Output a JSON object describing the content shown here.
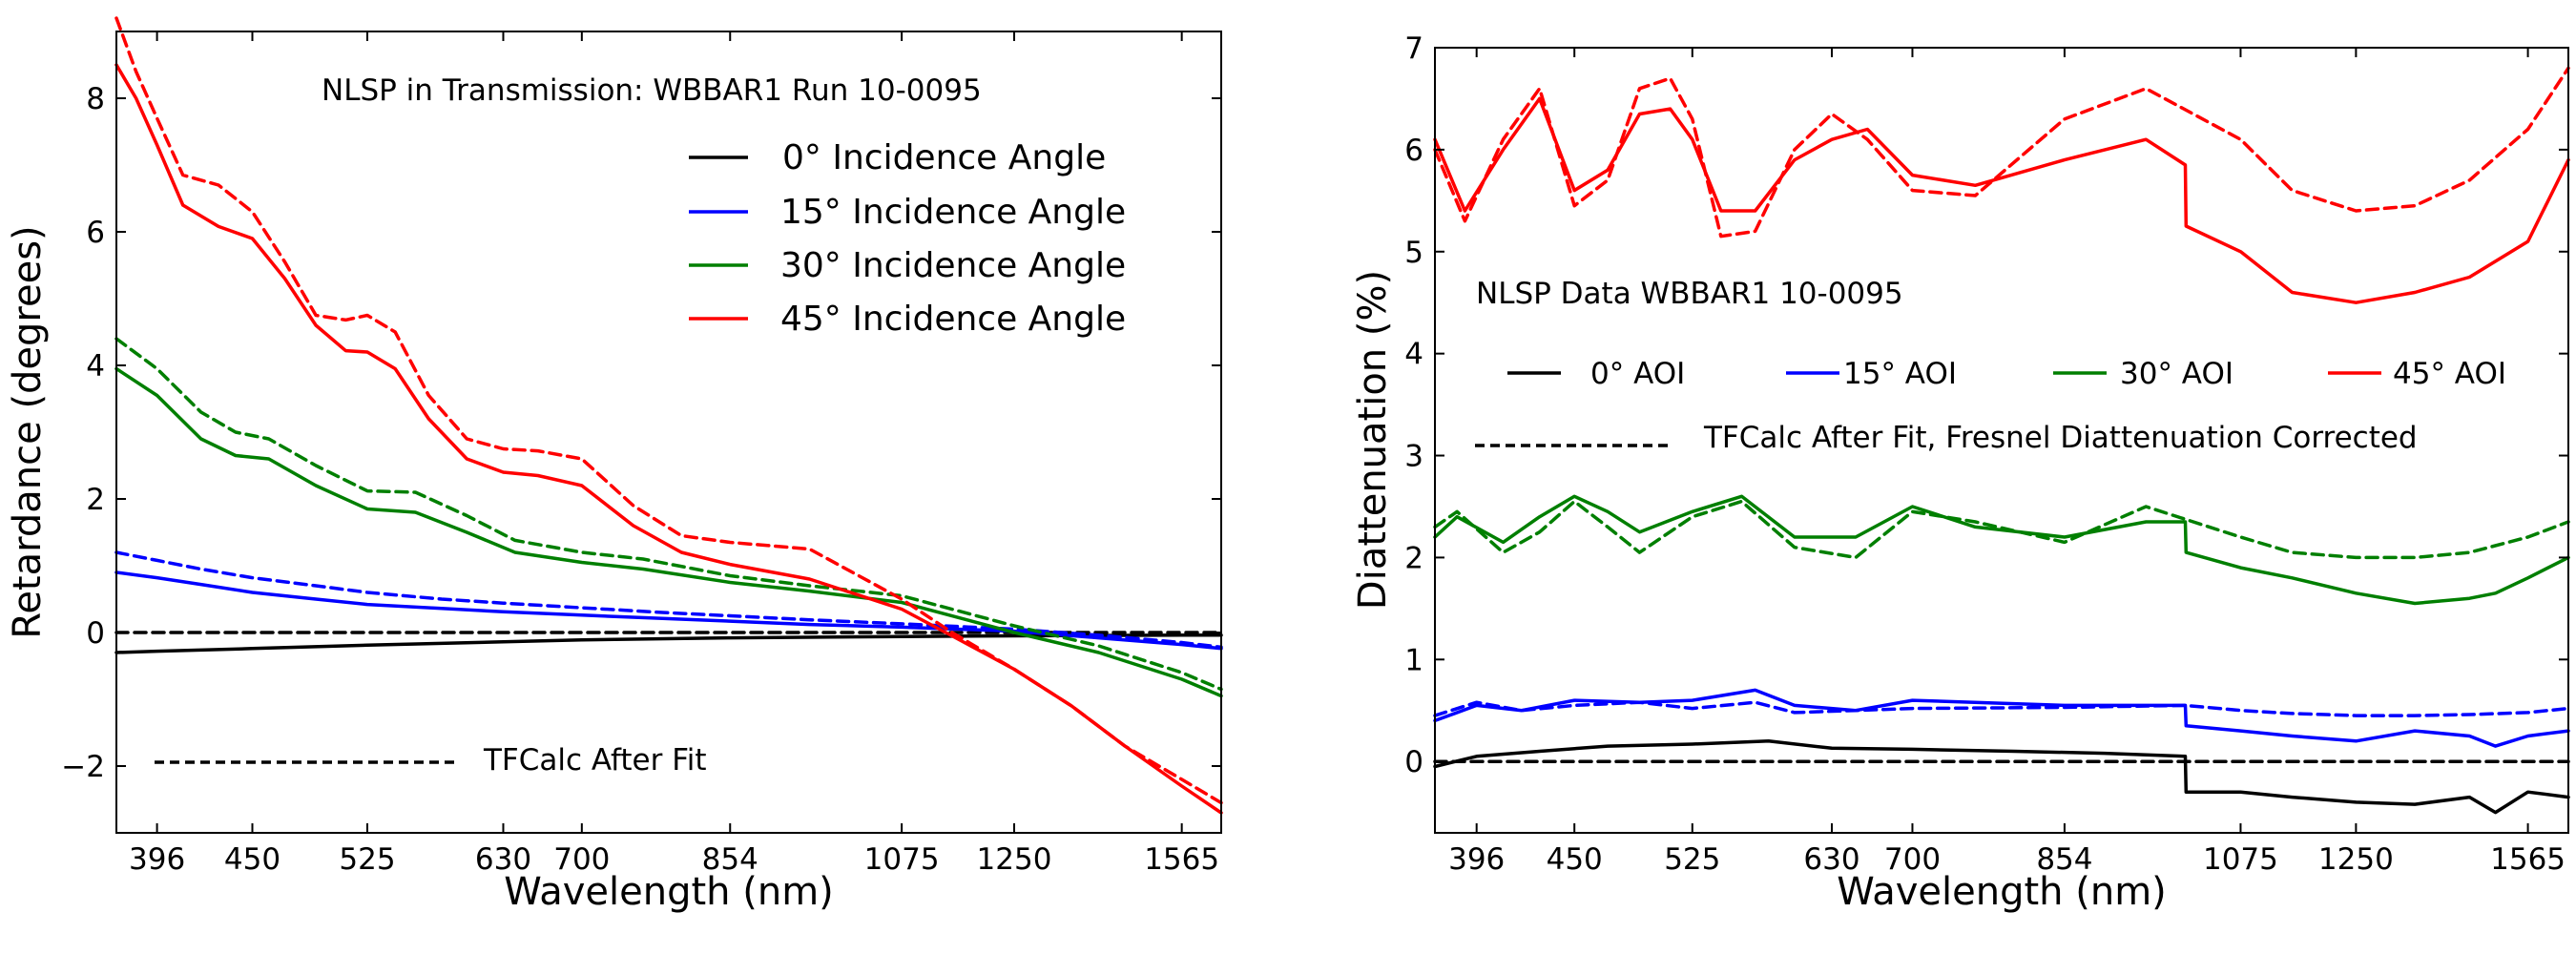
{
  "chart_data": [
    {
      "type": "line",
      "title": "NLSP in Transmission:  WBBAR1  Run 10-0095",
      "xlabel": "Wavelength (nm)",
      "ylabel": "Retardance (degrees)",
      "x_scale": "log",
      "xlim": [
        375,
        1650
      ],
      "ylim": [
        -3,
        9
      ],
      "xticks": [
        396,
        450,
        525,
        630,
        700,
        854,
        1075,
        1250,
        1565
      ],
      "yticks": [
        -2,
        0,
        2,
        4,
        6,
        8
      ],
      "ytick_labels": [
        "−2",
        "0",
        "2",
        "4",
        "6",
        "8"
      ],
      "legend": [
        "0° Incidence Angle",
        "15° Incidence Angle",
        "30° Incidence Angle",
        "45° Incidence Angle"
      ],
      "legend_position": "upper-right",
      "dashed_note": "TFCalc After Fit",
      "colors": {
        "0": "#000000",
        "15": "#0000ff",
        "30": "#007f00",
        "45": "#ff0000"
      },
      "series": [
        {
          "name": "0° measured",
          "angle": "0",
          "style": "solid",
          "x": [
            375,
            396,
            450,
            525,
            630,
            700,
            854,
            1075,
            1250,
            1565,
            1650
          ],
          "y": [
            -0.3,
            -0.28,
            -0.24,
            -0.19,
            -0.14,
            -0.11,
            -0.08,
            -0.06,
            -0.05,
            -0.04,
            -0.04
          ]
        },
        {
          "name": "0° TFCalc",
          "angle": "0",
          "style": "dashed",
          "x": [
            375,
            1650
          ],
          "y": [
            0.0,
            0.0
          ]
        },
        {
          "name": "15° measured",
          "angle": "15",
          "style": "solid",
          "x": [
            375,
            396,
            420,
            450,
            490,
            525,
            580,
            630,
            700,
            780,
            854,
            950,
            1075,
            1250,
            1400,
            1565,
            1650
          ],
          "y": [
            0.9,
            0.82,
            0.72,
            0.6,
            0.5,
            0.42,
            0.36,
            0.31,
            0.26,
            0.21,
            0.17,
            0.12,
            0.08,
            0.02,
            -0.08,
            -0.18,
            -0.24
          ]
        },
        {
          "name": "15° TFCalc",
          "angle": "15",
          "style": "dashed",
          "x": [
            375,
            396,
            420,
            450,
            490,
            525,
            580,
            630,
            700,
            780,
            854,
            950,
            1075,
            1250,
            1400,
            1565,
            1650
          ],
          "y": [
            1.2,
            1.08,
            0.95,
            0.82,
            0.7,
            0.6,
            0.5,
            0.44,
            0.37,
            0.3,
            0.25,
            0.19,
            0.13,
            0.05,
            -0.04,
            -0.15,
            -0.22
          ]
        },
        {
          "name": "30° measured",
          "angle": "30",
          "style": "solid",
          "x": [
            375,
            396,
            420,
            440,
            460,
            490,
            525,
            560,
            600,
            640,
            700,
            760,
            854,
            950,
            1075,
            1250,
            1400,
            1565,
            1650
          ],
          "y": [
            3.95,
            3.55,
            2.9,
            2.65,
            2.6,
            2.2,
            1.85,
            1.8,
            1.5,
            1.2,
            1.05,
            0.95,
            0.75,
            0.62,
            0.45,
            0.0,
            -0.3,
            -0.7,
            -0.95
          ]
        },
        {
          "name": "30° TFCalc",
          "angle": "30",
          "style": "dashed",
          "x": [
            375,
            396,
            420,
            440,
            460,
            490,
            525,
            560,
            600,
            640,
            700,
            760,
            854,
            950,
            1075,
            1250,
            1400,
            1565,
            1650
          ],
          "y": [
            4.4,
            3.95,
            3.3,
            3.0,
            2.9,
            2.5,
            2.12,
            2.1,
            1.75,
            1.38,
            1.2,
            1.1,
            0.85,
            0.7,
            0.55,
            0.1,
            -0.2,
            -0.6,
            -0.85
          ]
        },
        {
          "name": "45° measured",
          "angle": "45",
          "style": "solid",
          "x": [
            375,
            385,
            396,
            410,
            430,
            450,
            470,
            490,
            510,
            525,
            545,
            570,
            600,
            630,
            660,
            700,
            750,
            800,
            854,
            950,
            1075,
            1150,
            1250,
            1350,
            1450,
            1565,
            1650
          ],
          "y": [
            8.5,
            8.0,
            7.3,
            6.4,
            6.08,
            5.9,
            5.3,
            4.6,
            4.22,
            4.2,
            3.95,
            3.2,
            2.6,
            2.4,
            2.35,
            2.2,
            1.6,
            1.2,
            1.02,
            0.8,
            0.35,
            -0.05,
            -0.55,
            -1.1,
            -1.7,
            -2.3,
            -2.7
          ]
        },
        {
          "name": "45° TFCalc",
          "angle": "45",
          "style": "dashed",
          "x": [
            375,
            385,
            396,
            410,
            430,
            450,
            470,
            490,
            510,
            525,
            545,
            570,
            600,
            630,
            660,
            700,
            750,
            800,
            854,
            950,
            1075,
            1150,
            1250,
            1350,
            1450,
            1565,
            1650
          ],
          "y": [
            9.2,
            8.4,
            7.7,
            6.85,
            6.7,
            6.3,
            5.55,
            4.75,
            4.68,
            4.75,
            4.5,
            3.55,
            2.9,
            2.75,
            2.72,
            2.6,
            1.9,
            1.45,
            1.35,
            1.25,
            0.5,
            0.0,
            -0.55,
            -1.1,
            -1.7,
            -2.2,
            -2.55
          ]
        }
      ]
    },
    {
      "type": "line",
      "title": "NLSP Data WBBAR1  10-0095",
      "xlabel": "Wavelength (nm)",
      "ylabel": "Diattenuation (%)",
      "x_scale": "log",
      "xlim": [
        375,
        1650
      ],
      "ylim": [
        -0.7,
        7
      ],
      "xticks": [
        396,
        450,
        525,
        630,
        700,
        854,
        1075,
        1250,
        1565
      ],
      "yticks": [
        0,
        1,
        2,
        3,
        4,
        5,
        6,
        7
      ],
      "legend": [
        "0° AOI",
        "15° AOI",
        "30° AOI",
        "45° AOI"
      ],
      "legend_position": "center-left",
      "dashed_note": "TFCalc After Fit, Fresnel Diattenuation Corrected",
      "colors": {
        "0": "#000000",
        "15": "#0000ff",
        "30": "#007f00",
        "45": "#ff0000"
      },
      "series": [
        {
          "name": "0° AOI measured",
          "angle": "0",
          "style": "solid",
          "x": [
            375,
            396,
            430,
            470,
            525,
            580,
            630,
            700,
            800,
            900,
            1000,
            1001,
            1075,
            1150,
            1250,
            1350,
            1450,
            1500,
            1565,
            1650
          ],
          "y": [
            -0.05,
            0.05,
            0.1,
            0.15,
            0.17,
            0.2,
            0.13,
            0.12,
            0.1,
            0.08,
            0.05,
            -0.3,
            -0.3,
            -0.35,
            -0.4,
            -0.42,
            -0.35,
            -0.5,
            -0.3,
            -0.35
          ]
        },
        {
          "name": "0° AOI TFCalc",
          "angle": "0",
          "style": "dashed",
          "x": [
            375,
            1650
          ],
          "y": [
            0.0,
            0.0
          ]
        },
        {
          "name": "15° AOI measured",
          "angle": "15",
          "style": "solid",
          "x": [
            375,
            396,
            420,
            450,
            490,
            525,
            570,
            600,
            650,
            700,
            854,
            1000,
            1001,
            1075,
            1150,
            1250,
            1350,
            1450,
            1500,
            1565,
            1650
          ],
          "y": [
            0.4,
            0.55,
            0.5,
            0.6,
            0.58,
            0.6,
            0.7,
            0.55,
            0.5,
            0.6,
            0.55,
            0.55,
            0.35,
            0.3,
            0.25,
            0.2,
            0.3,
            0.25,
            0.15,
            0.25,
            0.3
          ]
        },
        {
          "name": "15° AOI TFCalc",
          "angle": "15",
          "style": "dashed",
          "x": [
            375,
            396,
            420,
            450,
            490,
            525,
            570,
            600,
            650,
            700,
            854,
            1000,
            1075,
            1150,
            1250,
            1350,
            1450,
            1565,
            1650
          ],
          "y": [
            0.45,
            0.58,
            0.5,
            0.55,
            0.58,
            0.52,
            0.58,
            0.48,
            0.5,
            0.52,
            0.53,
            0.55,
            0.5,
            0.47,
            0.45,
            0.45,
            0.46,
            0.48,
            0.52
          ]
        },
        {
          "name": "30° AOI measured",
          "angle": "30",
          "style": "solid",
          "x": [
            375,
            386,
            410,
            430,
            450,
            470,
            490,
            525,
            560,
            600,
            650,
            700,
            760,
            854,
            950,
            1000,
            1001,
            1075,
            1150,
            1250,
            1350,
            1450,
            1500,
            1565,
            1650
          ],
          "y": [
            2.2,
            2.4,
            2.15,
            2.4,
            2.6,
            2.45,
            2.25,
            2.45,
            2.6,
            2.2,
            2.2,
            2.5,
            2.3,
            2.2,
            2.35,
            2.35,
            2.05,
            1.9,
            1.8,
            1.65,
            1.55,
            1.6,
            1.65,
            1.8,
            2.0
          ]
        },
        {
          "name": "30° AOI TFCalc",
          "angle": "30",
          "style": "dashed",
          "x": [
            375,
            386,
            410,
            430,
            450,
            470,
            490,
            525,
            560,
            600,
            650,
            700,
            760,
            854,
            950,
            1075,
            1150,
            1250,
            1350,
            1450,
            1565,
            1650
          ],
          "y": [
            2.3,
            2.45,
            2.05,
            2.25,
            2.55,
            2.3,
            2.05,
            2.4,
            2.55,
            2.1,
            2.0,
            2.45,
            2.35,
            2.15,
            2.5,
            2.2,
            2.05,
            2.0,
            2.0,
            2.05,
            2.2,
            2.35
          ]
        },
        {
          "name": "45° AOI measured",
          "angle": "45",
          "style": "solid",
          "x": [
            375,
            390,
            410,
            430,
            450,
            470,
            490,
            510,
            525,
            545,
            570,
            600,
            630,
            660,
            700,
            760,
            854,
            950,
            1000,
            1001,
            1075,
            1150,
            1250,
            1350,
            1450,
            1565,
            1650
          ],
          "y": [
            6.1,
            5.4,
            6.0,
            6.5,
            5.6,
            5.8,
            6.35,
            6.4,
            6.1,
            5.4,
            5.4,
            5.9,
            6.1,
            6.2,
            5.75,
            5.65,
            5.9,
            6.1,
            5.85,
            5.25,
            5.0,
            4.6,
            4.5,
            4.6,
            4.75,
            5.1,
            5.9
          ]
        },
        {
          "name": "45° AOI TFCalc",
          "angle": "45",
          "style": "dashed",
          "x": [
            375,
            390,
            410,
            430,
            450,
            470,
            490,
            510,
            525,
            545,
            570,
            600,
            630,
            660,
            700,
            760,
            854,
            950,
            1075,
            1150,
            1250,
            1350,
            1450,
            1565,
            1650
          ],
          "y": [
            6.0,
            5.3,
            6.1,
            6.6,
            5.45,
            5.7,
            6.6,
            6.7,
            6.3,
            5.15,
            5.2,
            6.0,
            6.35,
            6.1,
            5.6,
            5.55,
            6.3,
            6.6,
            6.1,
            5.6,
            5.4,
            5.45,
            5.7,
            6.2,
            6.8
          ]
        }
      ]
    }
  ]
}
